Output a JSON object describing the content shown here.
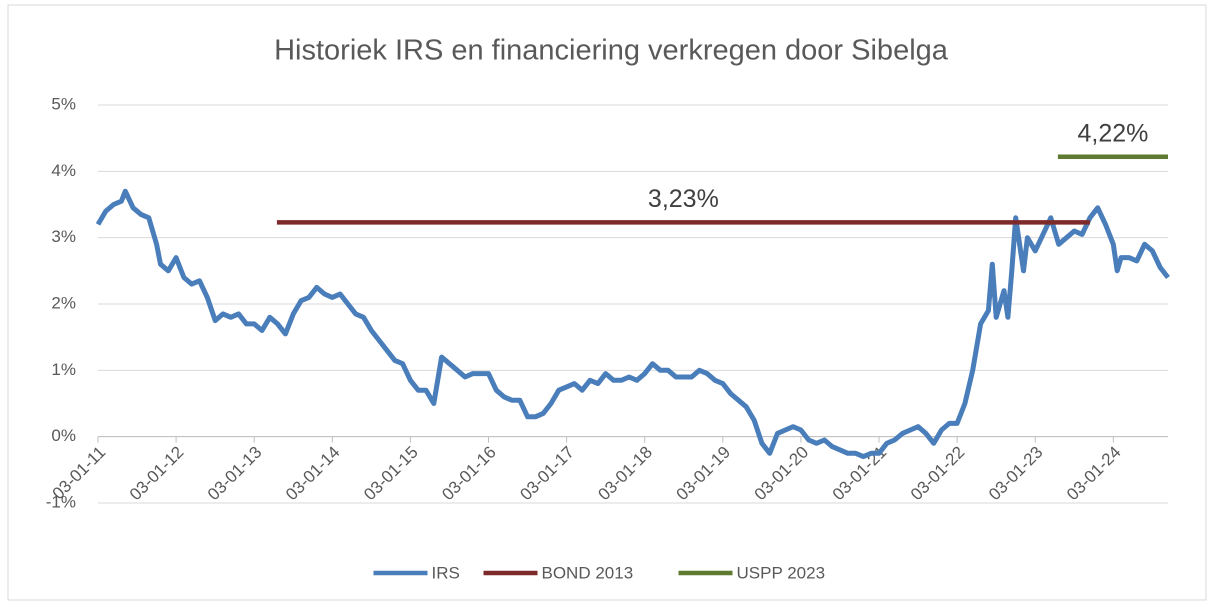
{
  "chart_data": {
    "type": "line",
    "title": "Historiek IRS en financiering verkregen door Sibelga",
    "xlim": [
      2011,
      2024.7
    ],
    "xticks": [
      {
        "value": 2011,
        "label": "03-01-11"
      },
      {
        "value": 2012,
        "label": "03-01-12"
      },
      {
        "value": 2013,
        "label": "03-01-13"
      },
      {
        "value": 2014,
        "label": "03-01-14"
      },
      {
        "value": 2015,
        "label": "03-01-15"
      },
      {
        "value": 2016,
        "label": "03-01-16"
      },
      {
        "value": 2017,
        "label": "03-01-17"
      },
      {
        "value": 2018,
        "label": "03-01-18"
      },
      {
        "value": 2019,
        "label": "03-01-19"
      },
      {
        "value": 2020,
        "label": "03-01-20"
      },
      {
        "value": 2021,
        "label": "03-01-21"
      },
      {
        "value": 2022,
        "label": "03-01-22"
      },
      {
        "value": 2023,
        "label": "03-01-23"
      },
      {
        "value": 2024,
        "label": "03-01-24"
      }
    ],
    "ylim": [
      -1,
      5
    ],
    "yticks": [
      {
        "value": -1,
        "label": "-1%"
      },
      {
        "value": 0,
        "label": "0%"
      },
      {
        "value": 1,
        "label": "1%"
      },
      {
        "value": 2,
        "label": "2%"
      },
      {
        "value": 3,
        "label": "3%"
      },
      {
        "value": 4,
        "label": "4%"
      },
      {
        "value": 5,
        "label": "5%"
      }
    ],
    "grid": true,
    "legend": "bottom",
    "series": [
      {
        "name": "IRS",
        "color": "#4a7ebb",
        "x": [
          2011.0,
          2011.1,
          2011.2,
          2011.3,
          2011.35,
          2011.45,
          2011.55,
          2011.65,
          2011.75,
          2011.8,
          2011.9,
          2012.0,
          2012.1,
          2012.2,
          2012.3,
          2012.4,
          2012.5,
          2012.6,
          2012.7,
          2012.8,
          2012.9,
          2013.0,
          2013.1,
          2013.2,
          2013.3,
          2013.4,
          2013.5,
          2013.6,
          2013.7,
          2013.8,
          2013.9,
          2014.0,
          2014.1,
          2014.2,
          2014.3,
          2014.4,
          2014.5,
          2014.6,
          2014.7,
          2014.8,
          2014.9,
          2015.0,
          2015.1,
          2015.2,
          2015.3,
          2015.4,
          2015.5,
          2015.6,
          2015.7,
          2015.8,
          2015.9,
          2016.0,
          2016.1,
          2016.2,
          2016.3,
          2016.4,
          2016.5,
          2016.6,
          2016.7,
          2016.8,
          2016.9,
          2017.0,
          2017.1,
          2017.2,
          2017.3,
          2017.4,
          2017.5,
          2017.6,
          2017.7,
          2017.8,
          2017.9,
          2018.0,
          2018.1,
          2018.2,
          2018.3,
          2018.4,
          2018.5,
          2018.6,
          2018.7,
          2018.8,
          2018.9,
          2019.0,
          2019.1,
          2019.2,
          2019.3,
          2019.4,
          2019.5,
          2019.6,
          2019.7,
          2019.8,
          2019.9,
          2020.0,
          2020.1,
          2020.2,
          2020.3,
          2020.4,
          2020.5,
          2020.6,
          2020.7,
          2020.8,
          2020.9,
          2021.0,
          2021.1,
          2021.2,
          2021.3,
          2021.4,
          2021.5,
          2021.6,
          2021.7,
          2021.8,
          2021.9,
          2022.0,
          2022.1,
          2022.2,
          2022.3,
          2022.4,
          2022.45,
          2022.5,
          2022.6,
          2022.65,
          2022.7,
          2022.75,
          2022.8,
          2022.85,
          2022.9,
          2023.0,
          2023.1,
          2023.2,
          2023.3,
          2023.4,
          2023.5,
          2023.6,
          2023.7,
          2023.8,
          2023.9,
          2024.0,
          2024.05,
          2024.1,
          2024.2,
          2024.3,
          2024.4,
          2024.5,
          2024.6,
          2024.7
        ],
        "values": [
          3.2,
          3.4,
          3.5,
          3.55,
          3.7,
          3.45,
          3.35,
          3.3,
          2.9,
          2.6,
          2.5,
          2.7,
          2.4,
          2.3,
          2.35,
          2.1,
          1.75,
          1.85,
          1.8,
          1.85,
          1.7,
          1.7,
          1.6,
          1.8,
          1.7,
          1.55,
          1.85,
          2.05,
          2.1,
          2.25,
          2.15,
          2.1,
          2.15,
          2.0,
          1.85,
          1.8,
          1.6,
          1.45,
          1.3,
          1.15,
          1.1,
          0.85,
          0.7,
          0.7,
          0.5,
          1.2,
          1.1,
          1.0,
          0.9,
          0.95,
          0.95,
          0.95,
          0.7,
          0.6,
          0.55,
          0.55,
          0.3,
          0.3,
          0.35,
          0.5,
          0.7,
          0.75,
          0.8,
          0.7,
          0.85,
          0.8,
          0.95,
          0.85,
          0.85,
          0.9,
          0.85,
          0.95,
          1.1,
          1.0,
          1.0,
          0.9,
          0.9,
          0.9,
          1.0,
          0.95,
          0.85,
          0.8,
          0.65,
          0.55,
          0.45,
          0.25,
          -0.1,
          -0.25,
          0.05,
          0.1,
          0.15,
          0.1,
          -0.05,
          -0.1,
          -0.05,
          -0.15,
          -0.2,
          -0.25,
          -0.25,
          -0.3,
          -0.25,
          -0.25,
          -0.1,
          -0.05,
          0.05,
          0.1,
          0.15,
          0.05,
          -0.1,
          0.1,
          0.2,
          0.2,
          0.5,
          1.0,
          1.7,
          1.9,
          2.6,
          1.8,
          2.2,
          1.8,
          2.5,
          3.3,
          2.9,
          2.5,
          3.0,
          2.8,
          3.05,
          3.3,
          2.9,
          3.0,
          3.1,
          3.05,
          3.3,
          3.45,
          3.2,
          2.9,
          2.5,
          2.7,
          2.7,
          2.65,
          2.9,
          2.8,
          2.55,
          2.4
        ]
      },
      {
        "name": "BOND 2013",
        "color": "#7f2a2a",
        "x": [
          2013.29,
          2023.7
        ],
        "values": [
          3.23,
          3.23
        ],
        "label": "3,23%"
      },
      {
        "name": "USPP 2023",
        "color": "#5e7a31",
        "x": [
          2023.29,
          2024.7
        ],
        "values": [
          4.22,
          4.22
        ],
        "label": "4,22%"
      }
    ]
  }
}
